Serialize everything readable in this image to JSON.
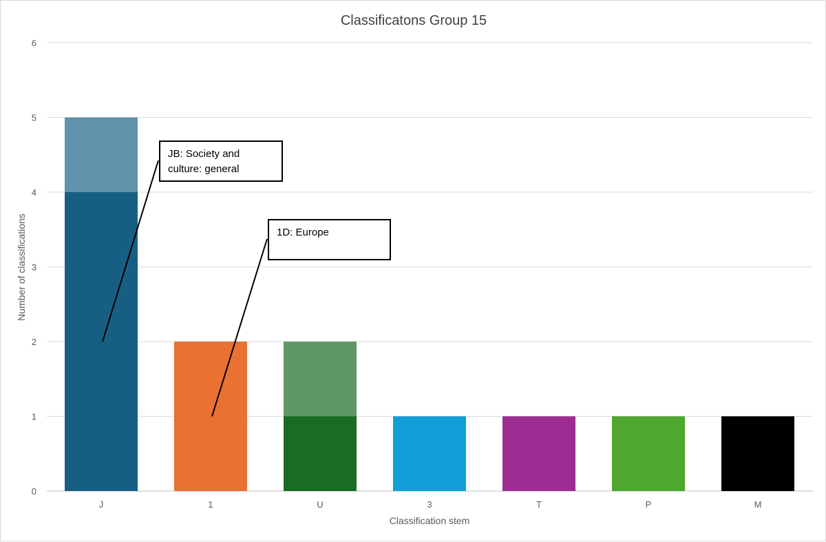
{
  "chart_data": {
    "type": "bar",
    "stacked": true,
    "title": "Classificatons Group 15",
    "xlabel": "Classification stem",
    "ylabel": "Number of classifications",
    "ylim": [
      0,
      6
    ],
    "yticks": [
      0,
      1,
      2,
      3,
      4,
      5,
      6
    ],
    "grid": true,
    "categories": [
      "J",
      "1",
      "U",
      "3",
      "T",
      "P",
      "M"
    ],
    "bars": [
      {
        "category": "J",
        "segments": [
          {
            "value": 4,
            "color": "#175f82"
          },
          {
            "value": 1,
            "color": "#5e93ab"
          }
        ]
      },
      {
        "category": "1",
        "segments": [
          {
            "value": 2,
            "color": "#e97132"
          }
        ]
      },
      {
        "category": "U",
        "segments": [
          {
            "value": 1,
            "color": "#1a6b23"
          },
          {
            "value": 1,
            "color": "#5f9665"
          }
        ]
      },
      {
        "category": "3",
        "segments": [
          {
            "value": 1,
            "color": "#109fd8"
          }
        ]
      },
      {
        "category": "T",
        "segments": [
          {
            "value": 1,
            "color": "#9c2c92"
          }
        ]
      },
      {
        "category": "P",
        "segments": [
          {
            "value": 1,
            "color": "#4ea72e"
          }
        ]
      },
      {
        "category": "M",
        "segments": [
          {
            "value": 1,
            "color": "#000000"
          }
        ]
      }
    ],
    "annotations": [
      {
        "lines": [
          "JB: Society and",
          "culture: general"
        ],
        "category": "J",
        "value": 2
      },
      {
        "lines": [
          "1D: Europe"
        ],
        "category": "1",
        "value": 1
      }
    ]
  }
}
